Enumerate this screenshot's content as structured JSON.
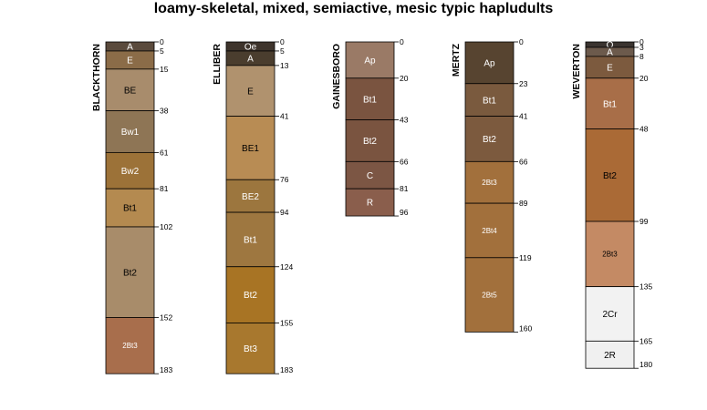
{
  "chart_data": {
    "type": "soil-profile",
    "title": "loamy-skeletal, mixed, semiactive, mesic typic hapludults",
    "profiles": [
      {
        "name": "BLACKTHORN",
        "horizons": [
          {
            "name": "A",
            "top": 0,
            "bottom": 5,
            "color": "#5a4a3c",
            "text_color": "#ffffff"
          },
          {
            "name": "E",
            "top": 5,
            "bottom": 15,
            "color": "#8b6c48",
            "text_color": "#ffffff"
          },
          {
            "name": "BE",
            "top": 15,
            "bottom": 38,
            "color": "#a88c6c",
            "text_color": "#000000"
          },
          {
            "name": "Bw1",
            "top": 38,
            "bottom": 61,
            "color": "#8e7555",
            "text_color": "#ffffff"
          },
          {
            "name": "Bw2",
            "top": 61,
            "bottom": 81,
            "color": "#9c7238",
            "text_color": "#ffffff"
          },
          {
            "name": "Bt1",
            "top": 81,
            "bottom": 102,
            "color": "#b48a50",
            "text_color": "#000000"
          },
          {
            "name": "Bt2",
            "top": 102,
            "bottom": 152,
            "color": "#a88c6a",
            "text_color": "#000000"
          },
          {
            "name": "2Bt3",
            "top": 152,
            "bottom": 183,
            "color": "#a86e4c",
            "text_color": "#ffffff"
          }
        ]
      },
      {
        "name": "ELLIBER",
        "horizons": [
          {
            "name": "Oe",
            "top": 0,
            "bottom": 5,
            "color": "#3e342c",
            "text_color": "#ffffff"
          },
          {
            "name": "A",
            "top": 5,
            "bottom": 13,
            "color": "#4a3d2e",
            "text_color": "#ffffff"
          },
          {
            "name": "E",
            "top": 13,
            "bottom": 41,
            "color": "#b0926e",
            "text_color": "#000000"
          },
          {
            "name": "BE1",
            "top": 41,
            "bottom": 76,
            "color": "#b88c54",
            "text_color": "#000000"
          },
          {
            "name": "BE2",
            "top": 76,
            "bottom": 94,
            "color": "#9c763e",
            "text_color": "#ffffff"
          },
          {
            "name": "Bt1",
            "top": 94,
            "bottom": 124,
            "color": "#9e7740",
            "text_color": "#ffffff"
          },
          {
            "name": "Bt2",
            "top": 124,
            "bottom": 155,
            "color": "#a87424",
            "text_color": "#ffffff"
          },
          {
            "name": "Bt3",
            "top": 155,
            "bottom": 183,
            "color": "#a8782e",
            "text_color": "#ffffff"
          }
        ]
      },
      {
        "name": "GAINESBORO",
        "horizons": [
          {
            "name": "Ap",
            "top": 0,
            "bottom": 20,
            "color": "#9a7a66",
            "text_color": "#ffffff"
          },
          {
            "name": "Bt1",
            "top": 20,
            "bottom": 43,
            "color": "#7a5440",
            "text_color": "#ffffff"
          },
          {
            "name": "Bt2",
            "top": 43,
            "bottom": 66,
            "color": "#7a5440",
            "text_color": "#ffffff"
          },
          {
            "name": "C",
            "top": 66,
            "bottom": 81,
            "color": "#7c5644",
            "text_color": "#ffffff"
          },
          {
            "name": "R",
            "top": 81,
            "bottom": 96,
            "color": "#8a5e4c",
            "text_color": "#ffffff"
          }
        ]
      },
      {
        "name": "MERTZ",
        "horizons": [
          {
            "name": "Ap",
            "top": 0,
            "bottom": 23,
            "color": "#574430",
            "text_color": "#ffffff"
          },
          {
            "name": "Bt1",
            "top": 23,
            "bottom": 41,
            "color": "#7a5a3e",
            "text_color": "#ffffff"
          },
          {
            "name": "Bt2",
            "top": 41,
            "bottom": 66,
            "color": "#7c5a3e",
            "text_color": "#ffffff"
          },
          {
            "name": "2Bt3",
            "top": 66,
            "bottom": 89,
            "color": "#a2703c",
            "text_color": "#ffffff"
          },
          {
            "name": "2Bt4",
            "top": 89,
            "bottom": 119,
            "color": "#a2703c",
            "text_color": "#ffffff"
          },
          {
            "name": "2Bt5",
            "top": 119,
            "bottom": 160,
            "color": "#a2703c",
            "text_color": "#ffffff"
          }
        ]
      },
      {
        "name": "WEVERTON",
        "horizons": [
          {
            "name": "O",
            "top": 0,
            "bottom": 3,
            "color": "#3a3430",
            "text_color": "#ffffff"
          },
          {
            "name": "A",
            "top": 3,
            "bottom": 8,
            "color": "#6c5a4c",
            "text_color": "#ffffff"
          },
          {
            "name": "E",
            "top": 8,
            "bottom": 20,
            "color": "#7c5a3e",
            "text_color": "#ffffff"
          },
          {
            "name": "Bt1",
            "top": 20,
            "bottom": 48,
            "color": "#a86e48",
            "text_color": "#ffffff"
          },
          {
            "name": "Bt2",
            "top": 48,
            "bottom": 99,
            "color": "#aa6a36",
            "text_color": "#000000"
          },
          {
            "name": "2Bt3",
            "top": 99,
            "bottom": 135,
            "color": "#c48a64",
            "text_color": "#000000"
          },
          {
            "name": "2Cr",
            "top": 135,
            "bottom": 165,
            "color": "#f2f2f2",
            "text_color": "#000000"
          },
          {
            "name": "2R",
            "top": 165,
            "bottom": 180,
            "color": "#f0f0f0",
            "text_color": "#000000"
          }
        ]
      }
    ],
    "depth_ticks": [
      [
        "0",
        "5",
        "15",
        "38",
        "61",
        "81",
        "102",
        "152",
        "183"
      ],
      [
        "0",
        "5",
        "13",
        "41",
        "76",
        "94",
        "124",
        "155",
        "183"
      ],
      [
        "0",
        "20",
        "43",
        "66",
        "81",
        "96"
      ],
      [
        "0",
        "23",
        "41",
        "66",
        "89",
        "119",
        "160"
      ],
      [
        "0",
        "3",
        "8",
        "20",
        "48",
        "99",
        "135",
        "165",
        "180"
      ]
    ]
  }
}
